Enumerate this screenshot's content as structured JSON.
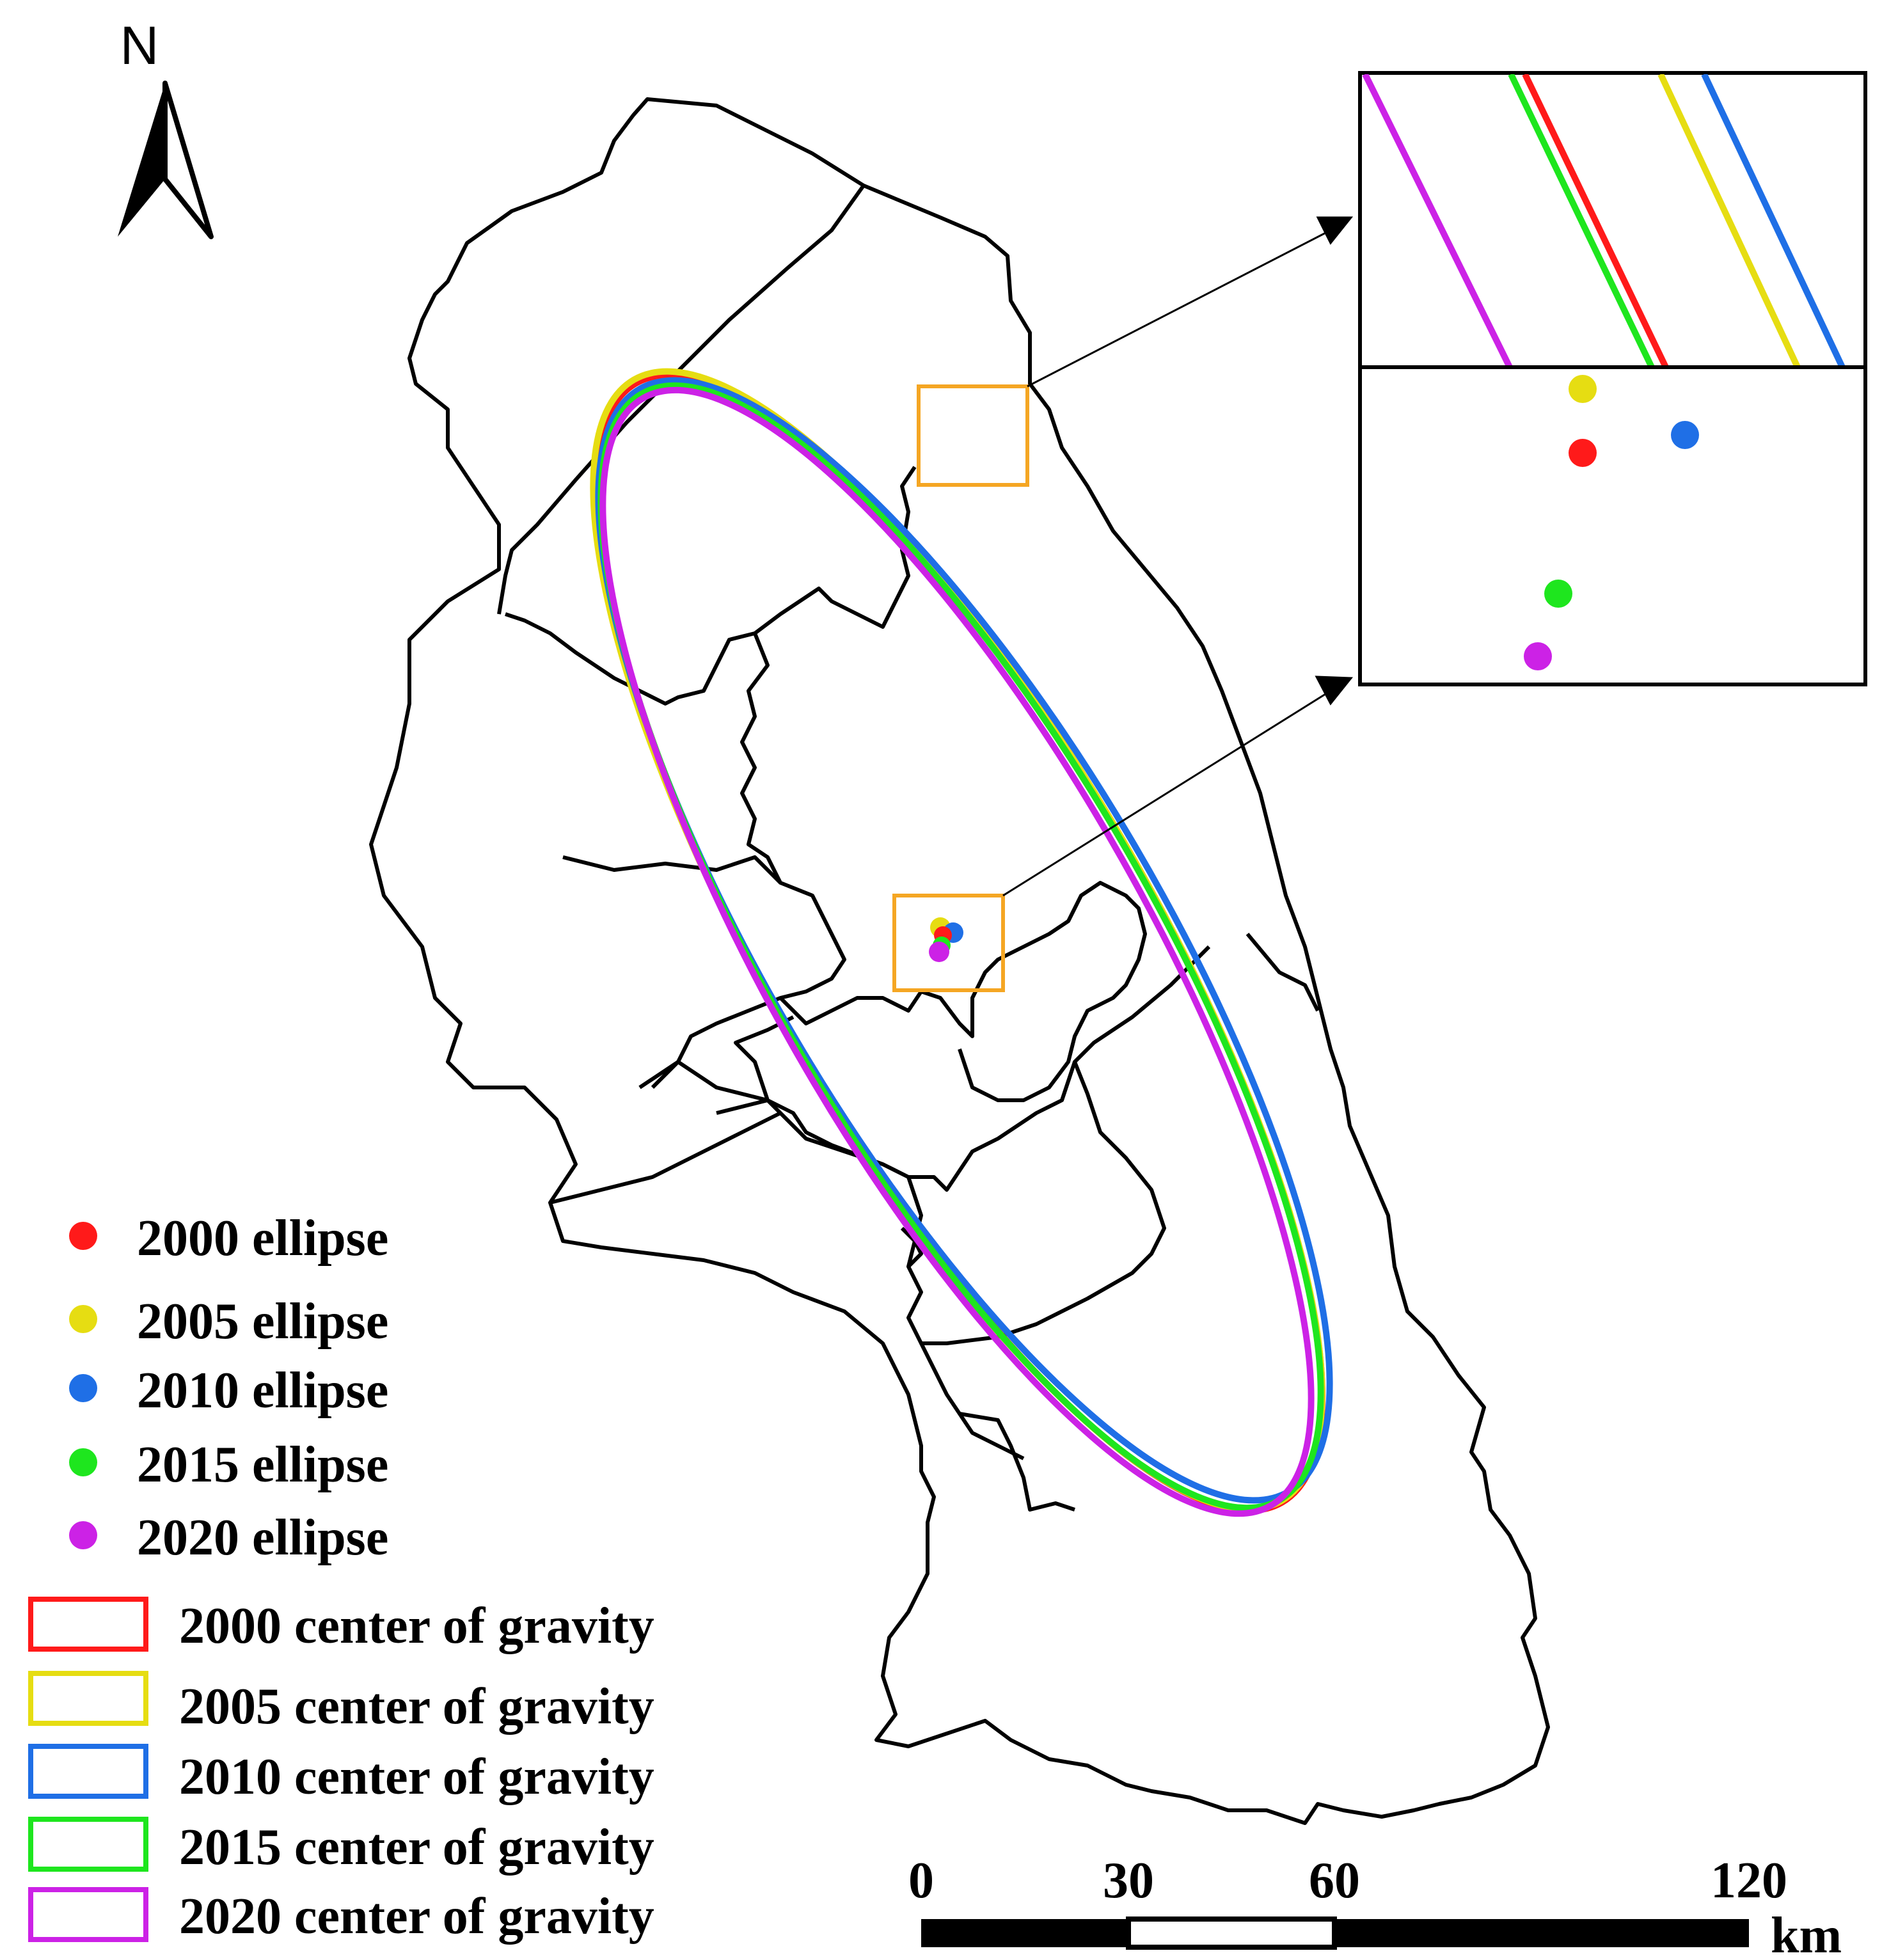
{
  "north_arrow": {
    "label": "N",
    "icon": "north-arrow-icon"
  },
  "legend": {
    "point_items": [
      {
        "label": "2000 ellipse",
        "color": "#ff1a1a"
      },
      {
        "label": "2005 ellipse",
        "color": "#e6dd12"
      },
      {
        "label": "2010 ellipse",
        "color": "#1f6fe6"
      },
      {
        "label": "2015 ellipse",
        "color": "#1ee61e"
      },
      {
        "label": "2020 ellipse",
        "color": "#cc22e6"
      }
    ],
    "box_items": [
      {
        "label": "2000 center of gravity",
        "color": "#ff1a1a"
      },
      {
        "label": "2005 center of gravity",
        "color": "#e6dd12"
      },
      {
        "label": "2010 center of gravity",
        "color": "#1f6fe6"
      },
      {
        "label": "2015 center of gravity",
        "color": "#1ee61e"
      },
      {
        "label": "2020 center of gravity",
        "color": "#cc22e6"
      }
    ]
  },
  "scale_bar": {
    "ticks": [
      "0",
      "30",
      "60",
      "120"
    ],
    "unit": "km"
  },
  "colors": {
    "highlight_box": "#f5a623",
    "boundary": "#000000"
  }
}
